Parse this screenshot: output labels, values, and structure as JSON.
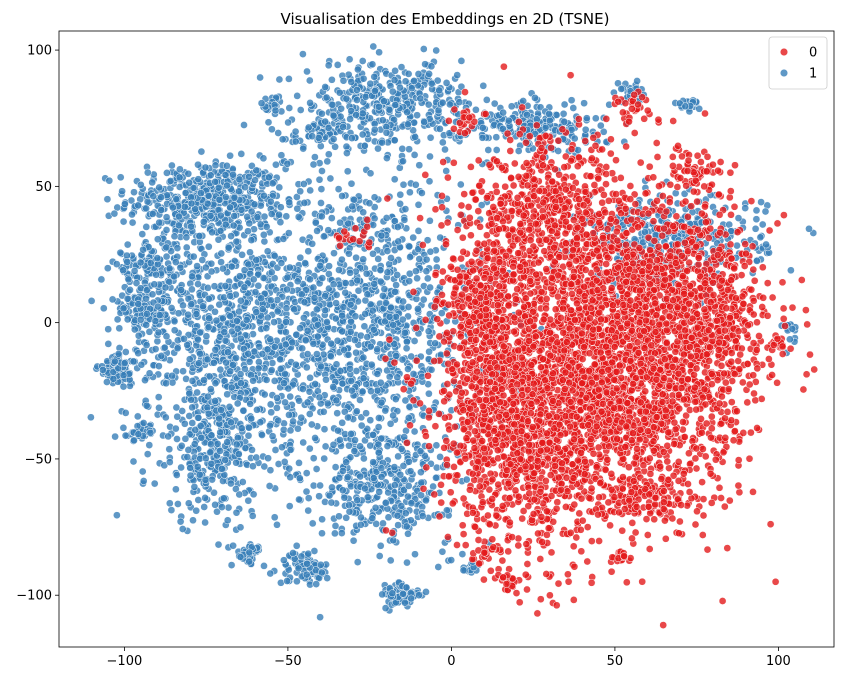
{
  "chart_data": {
    "type": "scatter",
    "title": "Visualisation des Embeddings en 2D (TSNE)",
    "xlabel": "",
    "ylabel": "",
    "xlim": [
      -120,
      117
    ],
    "ylim": [
      -119,
      107
    ],
    "xticks": [
      -100,
      -50,
      0,
      50,
      100
    ],
    "yticks": [
      -100,
      -50,
      0,
      50,
      100
    ],
    "grid": false,
    "legend": {
      "placement": "top-right"
    },
    "series": [
      {
        "name": "0",
        "color": "#e41a1c",
        "clusters": [
          {
            "cx": 45,
            "cy": -15,
            "sx": 20,
            "sy": 28,
            "n": 2600
          },
          {
            "cx": 22,
            "cy": -45,
            "sx": 13,
            "sy": 20,
            "n": 700
          },
          {
            "cx": 30,
            "cy": 40,
            "sx": 12,
            "sy": 14,
            "n": 500
          },
          {
            "cx": 68,
            "cy": 5,
            "sx": 12,
            "sy": 22,
            "n": 600
          },
          {
            "cx": 82,
            "cy": -5,
            "sx": 7,
            "sy": 18,
            "n": 250
          },
          {
            "cx": 60,
            "cy": -65,
            "sx": 8,
            "sy": 4,
            "n": 120
          },
          {
            "cx": 100,
            "cy": -8,
            "sx": 1.5,
            "sy": 1.5,
            "n": 20
          },
          {
            "cx": 52,
            "cy": -86,
            "sx": 1.5,
            "sy": 1.2,
            "n": 20
          },
          {
            "cx": 10,
            "cy": -85,
            "sx": 1.5,
            "sy": 1.2,
            "n": 12
          },
          {
            "cx": 18,
            "cy": -95,
            "sx": 2,
            "sy": 2,
            "n": 25
          },
          {
            "cx": 55,
            "cy": 80,
            "sx": 3,
            "sy": 3,
            "n": 30
          },
          {
            "cx": 75,
            "cy": 55,
            "sx": 4,
            "sy": 4,
            "n": 50
          },
          {
            "cx": 5,
            "cy": 75,
            "sx": 3,
            "sy": 3,
            "n": 20
          },
          {
            "cx": -30,
            "cy": 30,
            "sx": 3,
            "sy": 3,
            "n": 18
          },
          {
            "cx": 10,
            "cy": 0,
            "sx": 6,
            "sy": 20,
            "n": 400
          }
        ]
      },
      {
        "name": "1",
        "color": "#377eb8",
        "clusters": [
          {
            "cx": -75,
            "cy": 45,
            "sx": 12,
            "sy": 7,
            "n": 450
          },
          {
            "cx": -30,
            "cy": 0,
            "sx": 20,
            "sy": 28,
            "n": 1300
          },
          {
            "cx": -70,
            "cy": 0,
            "sx": 15,
            "sy": 20,
            "n": 600
          },
          {
            "cx": -72,
            "cy": -45,
            "sx": 10,
            "sy": 15,
            "n": 350
          },
          {
            "cx": -102,
            "cy": -17,
            "sx": 3,
            "sy": 3,
            "n": 90
          },
          {
            "cx": -92,
            "cy": 20,
            "sx": 6,
            "sy": 4,
            "n": 120
          },
          {
            "cx": -95,
            "cy": 3,
            "sx": 5,
            "sy": 3,
            "n": 80
          },
          {
            "cx": -95,
            "cy": -40,
            "sx": 2,
            "sy": 1.5,
            "n": 40
          },
          {
            "cx": -20,
            "cy": 80,
            "sx": 13,
            "sy": 8,
            "n": 380
          },
          {
            "cx": 25,
            "cy": 72,
            "sx": 11,
            "sy": 5,
            "n": 220
          },
          {
            "cx": 68,
            "cy": 30,
            "sx": 14,
            "sy": 8,
            "n": 350
          },
          {
            "cx": -45,
            "cy": -90,
            "sx": 4,
            "sy": 3,
            "n": 70
          },
          {
            "cx": -15,
            "cy": -100,
            "sx": 3,
            "sy": 2.5,
            "n": 80
          },
          {
            "cx": -62,
            "cy": -85,
            "sx": 2,
            "sy": 2,
            "n": 30
          },
          {
            "cx": -55,
            "cy": 80,
            "sx": 2,
            "sy": 1.5,
            "n": 25
          },
          {
            "cx": 72,
            "cy": 80,
            "sx": 2,
            "sy": 1,
            "n": 20
          },
          {
            "cx": 55,
            "cy": 85,
            "sx": 2,
            "sy": 2,
            "n": 25
          },
          {
            "cx": -20,
            "cy": -60,
            "sx": 10,
            "sy": 10,
            "n": 300
          },
          {
            "cx": 5,
            "cy": -90,
            "sx": 1.5,
            "sy": 1,
            "n": 15
          },
          {
            "cx": 103,
            "cy": -3,
            "sx": 1.2,
            "sy": 3,
            "n": 15
          },
          {
            "cx": -40,
            "cy": 70,
            "sx": 5,
            "sy": 3,
            "n": 60
          }
        ]
      }
    ]
  }
}
